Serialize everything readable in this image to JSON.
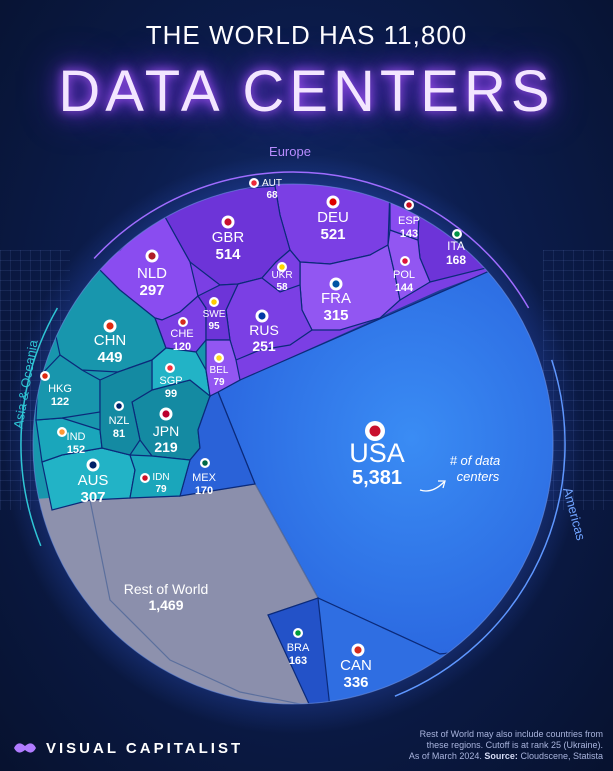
{
  "header": {
    "top": "THE WORLD HAS 11,800",
    "main": "DATA CENTERS"
  },
  "chart_data": {
    "type": "voronoi-treemap",
    "title": "THE WORLD HAS 11,800 DATA CENTERS",
    "unit_note": "# of data centers",
    "total": 11800,
    "groups": [
      {
        "name": "Europe",
        "color": "#7b3fe4"
      },
      {
        "name": "Americas",
        "color": "#2a6ee0"
      },
      {
        "name": "Asia & Oceania",
        "color": "#1a9fb5"
      },
      {
        "name": "Rest of World",
        "color": "#8d91ad"
      }
    ],
    "cells": [
      {
        "label": "USA",
        "value": 5381,
        "value_text": "5,381",
        "group": "Americas",
        "flag": "usa"
      },
      {
        "label": "Rest of World",
        "value": 1469,
        "value_text": "1,469",
        "group": "Rest of World",
        "flag": ""
      },
      {
        "label": "DEU",
        "value": 521,
        "value_text": "521",
        "group": "Europe",
        "flag": "deu"
      },
      {
        "label": "GBR",
        "value": 514,
        "value_text": "514",
        "group": "Europe",
        "flag": "gbr"
      },
      {
        "label": "CHN",
        "value": 449,
        "value_text": "449",
        "group": "Asia & Oceania",
        "flag": "chn"
      },
      {
        "label": "CAN",
        "value": 336,
        "value_text": "336",
        "group": "Americas",
        "flag": "can"
      },
      {
        "label": "FRA",
        "value": 315,
        "value_text": "315",
        "group": "Europe",
        "flag": "fra"
      },
      {
        "label": "AUS",
        "value": 307,
        "value_text": "307",
        "group": "Asia & Oceania",
        "flag": "aus"
      },
      {
        "label": "NLD",
        "value": 297,
        "value_text": "297",
        "group": "Europe",
        "flag": "nld"
      },
      {
        "label": "RUS",
        "value": 251,
        "value_text": "251",
        "group": "Europe",
        "flag": "rus"
      },
      {
        "label": "JPN",
        "value": 219,
        "value_text": "219",
        "group": "Asia & Oceania",
        "flag": "jpn"
      },
      {
        "label": "MEX",
        "value": 170,
        "value_text": "170",
        "group": "Americas",
        "flag": "mex"
      },
      {
        "label": "ITA",
        "value": 168,
        "value_text": "168",
        "group": "Europe",
        "flag": "ita"
      },
      {
        "label": "BRA",
        "value": 163,
        "value_text": "163",
        "group": "Americas",
        "flag": "bra"
      },
      {
        "label": "IND",
        "value": 152,
        "value_text": "152",
        "group": "Asia & Oceania",
        "flag": "ind"
      },
      {
        "label": "POL",
        "value": 144,
        "value_text": "144",
        "group": "Europe",
        "flag": "pol"
      },
      {
        "label": "ESP",
        "value": 143,
        "value_text": "143",
        "group": "Europe",
        "flag": "esp"
      },
      {
        "label": "HKG",
        "value": 122,
        "value_text": "122",
        "group": "Asia & Oceania",
        "flag": "hkg"
      },
      {
        "label": "CHE",
        "value": 120,
        "value_text": "120",
        "group": "Europe",
        "flag": "che"
      },
      {
        "label": "SGP",
        "value": 99,
        "value_text": "99",
        "group": "Asia & Oceania",
        "flag": "sgp"
      },
      {
        "label": "SWE",
        "value": 95,
        "value_text": "95",
        "group": "Europe",
        "flag": "swe"
      },
      {
        "label": "NZL",
        "value": 81,
        "value_text": "81",
        "group": "Asia & Oceania",
        "flag": "nzl"
      },
      {
        "label": "BEL",
        "value": 79,
        "value_text": "79",
        "group": "Europe",
        "flag": "bel"
      },
      {
        "label": "IDN",
        "value": 79,
        "value_text": "79",
        "group": "Asia & Oceania",
        "flag": "idn"
      },
      {
        "label": "AUT",
        "value": 68,
        "value_text": "68",
        "group": "Europe",
        "flag": "aut"
      },
      {
        "label": "UKR",
        "value": 58,
        "value_text": "58",
        "group": "Europe",
        "flag": "ukr"
      }
    ],
    "annotation": "# of data centers"
  },
  "region_labels": {
    "europe": "Europe",
    "americas": "Americas",
    "asia": "Asia & Oceania"
  },
  "annotation": {
    "line1": "# of data",
    "line2": "centers"
  },
  "footnote": {
    "line1": "Rest of World may also include countries from",
    "line2": "these regions. Cutoff is at rank 25 (Ukraine).",
    "line3_prefix": "As of March 2024.",
    "source_label": "Source:",
    "source_value": "Cloudscene, Statista"
  },
  "brand": {
    "name": "VISUAL CAPITALIST"
  }
}
